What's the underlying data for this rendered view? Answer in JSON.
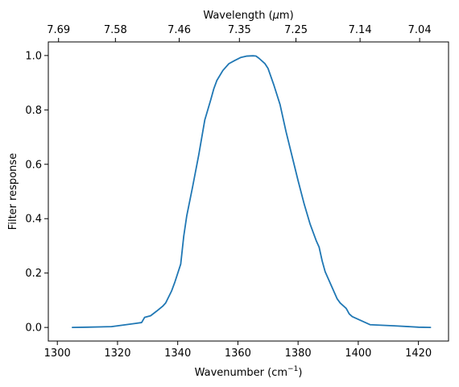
{
  "chart_data": {
    "type": "line",
    "title": "",
    "xlabel": "Wavenumber (cm",
    "xlabel_sup": "−1",
    "xlabel_end": ")",
    "ylabel": "Filter response",
    "top_xlabel": "Wavelength (",
    "top_xlabel_mu": "μ",
    "top_xlabel_end": "m)",
    "xlim": [
      1297,
      1430
    ],
    "ylim": [
      -0.05,
      1.05
    ],
    "grid": false,
    "xticks": [
      1300,
      1320,
      1340,
      1360,
      1380,
      1400,
      1420
    ],
    "xtick_labels": [
      "1300",
      "1320",
      "1340",
      "1360",
      "1380",
      "1400",
      "1420"
    ],
    "yticks": [
      0.0,
      0.2,
      0.4,
      0.6,
      0.8,
      1.0
    ],
    "ytick_labels": [
      "0.0",
      "0.2",
      "0.4",
      "0.6",
      "0.8",
      "1.0"
    ],
    "top_xticks": [
      1300.4,
      1319.3,
      1340.5,
      1360.5,
      1379.3,
      1400.6,
      1420.4
    ],
    "top_xtick_labels": [
      "7.69",
      "7.58",
      "7.46",
      "7.35",
      "7.25",
      "7.14",
      "7.04"
    ],
    "series": [
      {
        "color": "#1f77b4",
        "x": [
          1305,
          1310,
          1318,
          1322,
          1326,
          1328,
          1329,
          1331,
          1333,
          1335,
          1336,
          1338,
          1339,
          1341,
          1342,
          1343,
          1345,
          1347,
          1349,
          1351,
          1352,
          1353,
          1355,
          1357,
          1359,
          1361,
          1363,
          1365,
          1366,
          1367,
          1369,
          1370,
          1372,
          1374,
          1376,
          1378,
          1380,
          1382,
          1384,
          1386,
          1387,
          1388,
          1389,
          1391,
          1393,
          1394,
          1396,
          1397,
          1398,
          1400,
          1404,
          1412,
          1420,
          1424
        ],
        "y": [
          0.0,
          0.001,
          0.003,
          0.009,
          0.015,
          0.018,
          0.037,
          0.043,
          0.06,
          0.078,
          0.09,
          0.135,
          0.165,
          0.233,
          0.335,
          0.41,
          0.52,
          0.635,
          0.763,
          0.838,
          0.878,
          0.908,
          0.945,
          0.97,
          0.982,
          0.993,
          0.998,
          0.999,
          0.998,
          0.99,
          0.97,
          0.953,
          0.89,
          0.82,
          0.72,
          0.63,
          0.54,
          0.455,
          0.38,
          0.32,
          0.295,
          0.245,
          0.205,
          0.155,
          0.105,
          0.09,
          0.07,
          0.05,
          0.04,
          0.03,
          0.01,
          0.006,
          0.001,
          0.0
        ]
      }
    ]
  }
}
